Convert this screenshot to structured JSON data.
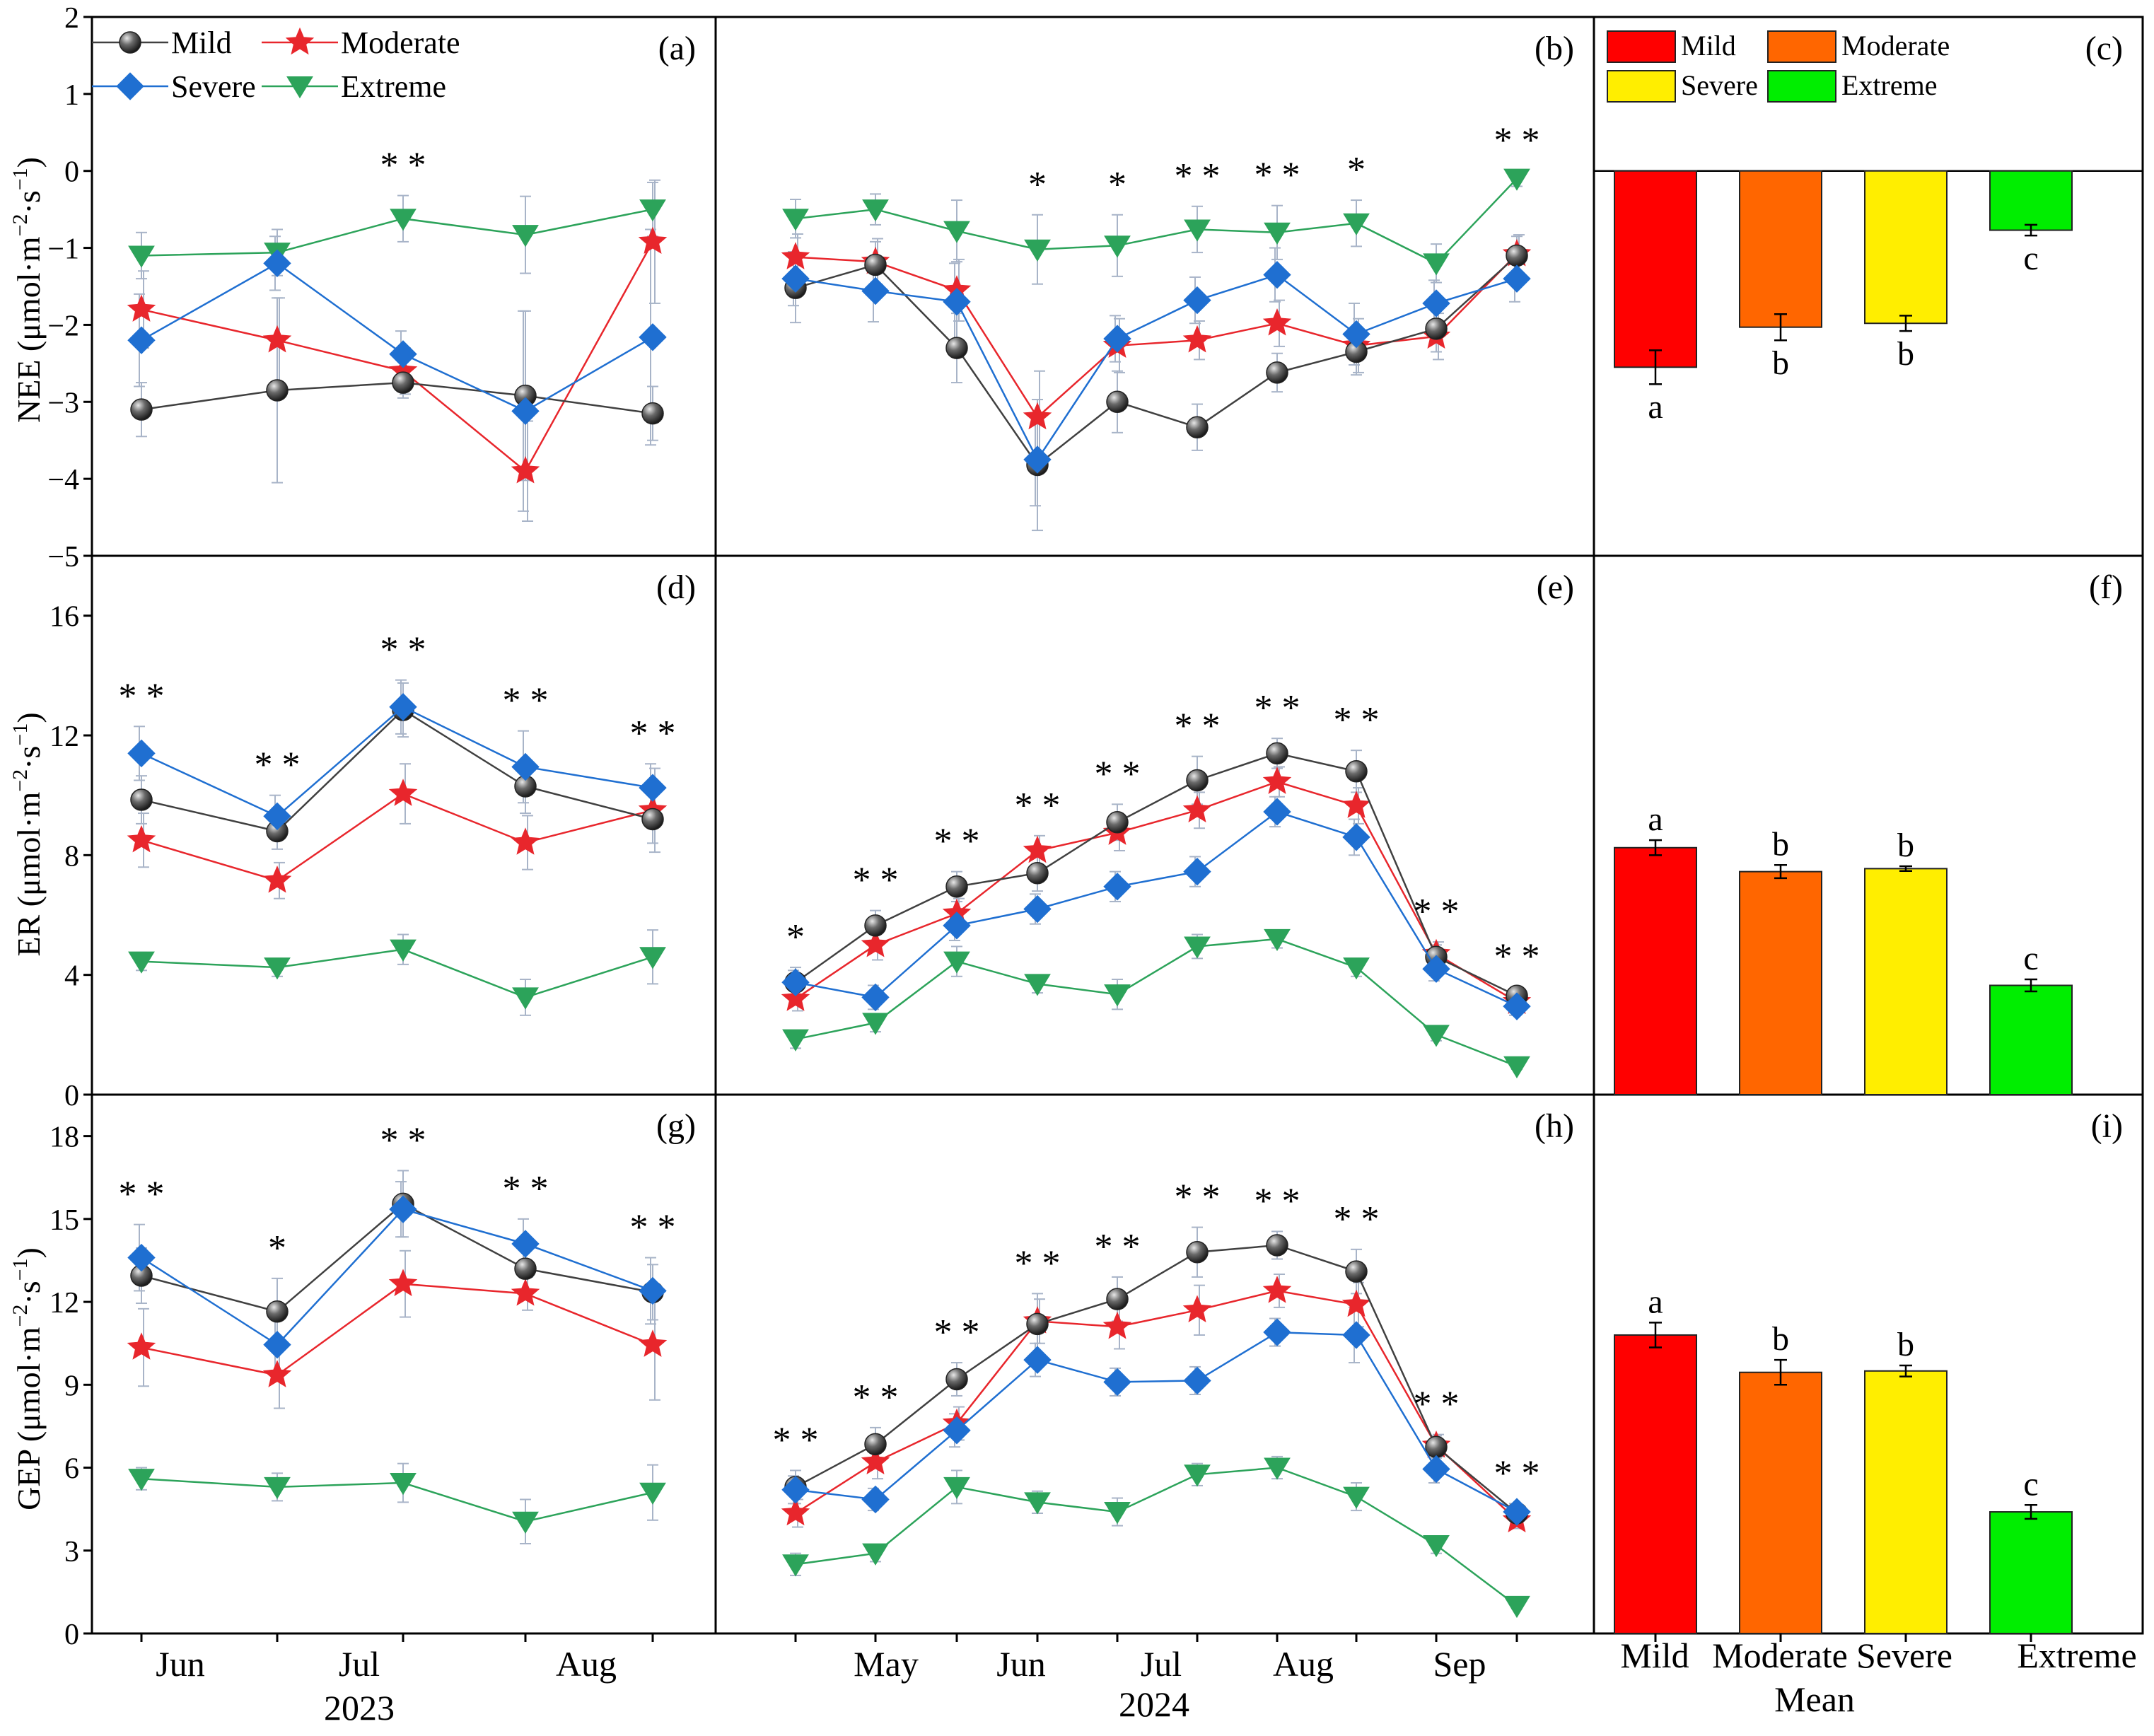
{
  "figure": {
    "markers": {
      "Mild": "sphere",
      "Moderate": "star",
      "Severe": "diamond",
      "Extreme": "down-triangle"
    },
    "line_colors": {
      "Mild": "#404040",
      "Moderate": "#e8262c",
      "Severe": "#1f6fd1",
      "Extreme": "#2ca35a"
    },
    "bar_colors": {
      "Mild": "#ff0000",
      "Moderate": "#ff6600",
      "Severe": "#ffee00",
      "Extreme": "#00ee00"
    },
    "errorbar_color": "#a8b4c8",
    "row_labels": {
      "NEE": {
        "main": "NEE (μmol·m",
        "sup1": "−2",
        "mid": "·s",
        "sup2": "−1",
        "end": ")"
      },
      "ER": {
        "main": "ER (μmol·m",
        "sup1": "−2",
        "mid": "·s",
        "sup2": "−1",
        "end": ")"
      },
      "GEP": {
        "main": "GEP (μmol·m",
        "sup1": "−2",
        "mid": "·s",
        "sup2": "−1",
        "end": ")"
      }
    },
    "x_axis_2023": {
      "ticks": [
        "Jun",
        "Jul",
        "Aug"
      ],
      "year": "2023"
    },
    "x_axis_2024": {
      "ticks": [
        "May",
        "Jun",
        "Jul",
        "Aug",
        "Sep"
      ],
      "year": "2024"
    },
    "x_axis_mean": {
      "ticks": [
        "Mild",
        "Moderate",
        "Severe",
        "Extreme"
      ],
      "title": "Mean"
    }
  },
  "chart_data": [
    {
      "panel": "(a)",
      "type": "line",
      "ylabel": "NEE",
      "ylim": [
        -5,
        2
      ],
      "yticks": [
        "2",
        "1",
        "0",
        "−1",
        "−2",
        "−3",
        "−4",
        "−5"
      ],
      "legend": [
        "Mild",
        "Moderate",
        "Severe",
        "Extreme"
      ],
      "series": [
        {
          "name": "Mild",
          "values": [
            -3.1,
            -2.85,
            -2.75,
            -2.92,
            -3.15
          ],
          "errors": [
            0.35,
            1.2,
            0.2,
            1.1,
            0.35
          ]
        },
        {
          "name": "Moderate",
          "values": [
            -1.8,
            -2.2,
            -2.6,
            -3.9,
            -0.92
          ],
          "errors": [
            0.5,
            0.55,
            0.3,
            0.65,
            0.8
          ]
        },
        {
          "name": "Severe",
          "values": [
            -2.2,
            -1.2,
            -2.38,
            -3.12,
            -2.16
          ],
          "errors": [
            0.6,
            0.35,
            0.3,
            1.3,
            1.4
          ]
        },
        {
          "name": "Extreme",
          "values": [
            -1.1,
            -1.06,
            -0.62,
            -0.83,
            -0.5
          ],
          "errors": [
            0.3,
            0.3,
            0.3,
            0.5,
            0.35
          ]
        }
      ],
      "significance": [
        "",
        "",
        "**",
        "",
        ""
      ]
    },
    {
      "panel": "(b)",
      "type": "line",
      "ylabel": "NEE",
      "ylim": [
        -5,
        2
      ],
      "series": [
        {
          "name": "Mild",
          "values": [
            -1.52,
            -1.22,
            -2.3,
            -3.82,
            -3.0,
            -3.33,
            -2.62,
            -2.35,
            -2.05,
            -1.1
          ],
          "errors": [
            0.45,
            0.3,
            0.45,
            0.85,
            0.4,
            0.3,
            0.25,
            0.3,
            0.3,
            0.25
          ]
        },
        {
          "name": "Moderate",
          "values": [
            -1.12,
            -1.18,
            -1.55,
            -3.2,
            -2.27,
            -2.2,
            -1.98,
            -2.27,
            -2.15,
            -1.08
          ],
          "errors": [
            0.3,
            0.3,
            0.4,
            0.6,
            0.35,
            0.25,
            0.3,
            0.35,
            0.3,
            0.25
          ]
        },
        {
          "name": "Severe",
          "values": [
            -1.4,
            -1.56,
            -1.7,
            -3.75,
            -2.18,
            -1.68,
            -1.35,
            -2.12,
            -1.72,
            -1.4
          ],
          "errors": [
            0.35,
            0.4,
            0.5,
            0.6,
            0.3,
            0.3,
            0.35,
            0.4,
            0.3,
            0.3
          ]
        },
        {
          "name": "Extreme",
          "values": [
            -0.62,
            -0.5,
            -0.78,
            -1.02,
            -0.97,
            -0.76,
            -0.8,
            -0.68,
            -1.2,
            -0.1
          ],
          "errors": [
            0.25,
            0.2,
            0.4,
            0.45,
            0.4,
            0.3,
            0.35,
            0.3,
            0.25,
            0.1
          ]
        }
      ],
      "significance": [
        "",
        "",
        "",
        "*",
        "*",
        "**",
        "**",
        "*",
        "",
        "**"
      ]
    },
    {
      "panel": "(c)",
      "type": "bar",
      "ylabel": "NEE",
      "ylim": [
        -5,
        2
      ],
      "categories": [
        "Mild",
        "Moderate",
        "Severe",
        "Extreme"
      ],
      "values": [
        -2.55,
        -2.03,
        -1.98,
        -0.77
      ],
      "errors": [
        0.22,
        0.17,
        0.1,
        0.07
      ],
      "letters": [
        "a",
        "b",
        "b",
        "c"
      ]
    },
    {
      "panel": "(d)",
      "type": "line",
      "ylabel": "ER",
      "ylim": [
        0,
        18
      ],
      "yticks": [
        "16",
        "12",
        "8",
        "4",
        "0"
      ],
      "series": [
        {
          "name": "Mild",
          "values": [
            9.85,
            8.8,
            12.85,
            10.3,
            9.2
          ],
          "errors": [
            0.8,
            0.6,
            0.9,
            0.9,
            0.8
          ]
        },
        {
          "name": "Moderate",
          "values": [
            8.5,
            7.15,
            10.05,
            8.42,
            9.5
          ],
          "errors": [
            0.9,
            0.6,
            1.0,
            0.9,
            1.4
          ]
        },
        {
          "name": "Severe",
          "values": [
            11.4,
            9.3,
            12.95,
            10.95,
            10.25
          ],
          "errors": [
            0.9,
            0.7,
            0.9,
            1.2,
            0.8
          ]
        },
        {
          "name": "Extreme",
          "values": [
            4.45,
            4.25,
            4.85,
            3.25,
            4.6
          ],
          "errors": [
            0.3,
            0.3,
            0.5,
            0.6,
            0.9
          ]
        }
      ],
      "significance": [
        "**",
        "**",
        "**",
        "**",
        "**"
      ]
    },
    {
      "panel": "(e)",
      "type": "line",
      "ylabel": "ER",
      "ylim": [
        0,
        18
      ],
      "series": [
        {
          "name": "Mild",
          "values": [
            3.75,
            5.65,
            6.95,
            7.4,
            9.1,
            10.5,
            11.4,
            10.8,
            4.6,
            3.3
          ],
          "errors": [
            0.5,
            0.5,
            0.5,
            0.6,
            0.6,
            0.8,
            0.5,
            0.7,
            0.4,
            0.3
          ]
        },
        {
          "name": "Moderate",
          "values": [
            3.2,
            5.0,
            6.05,
            8.15,
            8.75,
            9.5,
            10.45,
            9.65,
            4.7,
            3.1
          ],
          "errors": [
            0.4,
            0.5,
            0.5,
            0.5,
            0.6,
            0.6,
            0.5,
            0.6,
            0.4,
            0.3
          ]
        },
        {
          "name": "Severe",
          "values": [
            3.75,
            3.25,
            5.65,
            6.2,
            6.95,
            7.45,
            9.45,
            8.6,
            4.2,
            2.95
          ],
          "errors": [
            0.4,
            0.4,
            0.5,
            0.5,
            0.5,
            0.5,
            0.5,
            0.6,
            0.4,
            0.3
          ]
        },
        {
          "name": "Extreme",
          "values": [
            1.85,
            2.4,
            4.45,
            3.7,
            3.35,
            4.95,
            5.2,
            4.25,
            2.0,
            0.95
          ],
          "errors": [
            0.3,
            0.3,
            0.5,
            0.3,
            0.5,
            0.4,
            0.3,
            0.3,
            0.2,
            0.1
          ]
        }
      ],
      "significance": [
        "*",
        "**",
        "**",
        "**",
        "**",
        "**",
        "**",
        "**",
        "**",
        "**"
      ]
    },
    {
      "panel": "(f)",
      "type": "bar",
      "ylabel": "ER",
      "ylim": [
        0,
        18
      ],
      "categories": [
        "Mild",
        "Moderate",
        "Severe",
        "Extreme"
      ],
      "values": [
        8.25,
        7.45,
        7.55,
        3.65
      ],
      "errors": [
        0.25,
        0.22,
        0.08,
        0.2
      ],
      "letters": [
        "a",
        "b",
        "b",
        "c"
      ]
    },
    {
      "panel": "(g)",
      "type": "line",
      "ylabel": "GEP",
      "ylim": [
        0,
        19.5
      ],
      "yticks": [
        "18",
        "15",
        "12",
        "9",
        "6",
        "3",
        "0"
      ],
      "xticks": [
        "Jun",
        "Jul",
        "Aug"
      ],
      "year": "2023",
      "series": [
        {
          "name": "Mild",
          "values": [
            12.95,
            11.65,
            15.55,
            13.2,
            12.35
          ],
          "errors": [
            1.0,
            1.2,
            1.2,
            0.9,
            1.0
          ]
        },
        {
          "name": "Moderate",
          "values": [
            10.35,
            9.35,
            12.65,
            12.3,
            10.45
          ],
          "errors": [
            1.4,
            1.2,
            1.2,
            0.6,
            2.0
          ]
        },
        {
          "name": "Severe",
          "values": [
            13.6,
            10.45,
            15.35,
            14.1,
            12.4
          ],
          "errors": [
            1.2,
            1.0,
            1.0,
            0.9,
            1.2
          ]
        },
        {
          "name": "Extreme",
          "values": [
            5.6,
            5.3,
            5.45,
            4.05,
            5.1
          ],
          "errors": [
            0.4,
            0.5,
            0.7,
            0.8,
            1.0
          ]
        }
      ],
      "significance": [
        "**",
        "*",
        "**",
        "**",
        "**"
      ]
    },
    {
      "panel": "(h)",
      "type": "line",
      "ylabel": "GEP",
      "ylim": [
        0,
        19.5
      ],
      "xticks": [
        "May",
        "Jun",
        "Jul",
        "Aug",
        "Sep"
      ],
      "year": "2024",
      "series": [
        {
          "name": "Mild",
          "values": [
            5.3,
            6.85,
            9.2,
            11.2,
            12.1,
            13.8,
            14.05,
            13.1,
            6.75,
            4.35
          ],
          "errors": [
            0.6,
            0.6,
            0.6,
            1.1,
            0.8,
            0.9,
            0.5,
            0.8,
            0.4,
            0.3
          ]
        },
        {
          "name": "Moderate",
          "values": [
            4.35,
            6.2,
            7.6,
            11.3,
            11.1,
            11.7,
            12.4,
            11.9,
            6.8,
            4.1
          ],
          "errors": [
            0.5,
            0.6,
            0.6,
            0.8,
            0.8,
            0.9,
            0.6,
            0.8,
            0.4,
            0.3
          ]
        },
        {
          "name": "Severe",
          "values": [
            5.2,
            4.85,
            7.35,
            9.9,
            9.1,
            9.15,
            10.9,
            10.8,
            5.95,
            4.4
          ],
          "errors": [
            0.5,
            0.4,
            0.6,
            0.6,
            0.5,
            0.5,
            0.5,
            1.0,
            0.5,
            0.3
          ]
        },
        {
          "name": "Extreme",
          "values": [
            2.5,
            2.9,
            5.3,
            4.75,
            4.4,
            5.75,
            6.0,
            4.95,
            3.2,
            1.0
          ],
          "errors": [
            0.4,
            0.3,
            0.6,
            0.4,
            0.5,
            0.4,
            0.4,
            0.5,
            0.3,
            0.1
          ]
        }
      ],
      "significance": [
        "**",
        "**",
        "**",
        "**",
        "**",
        "**",
        "**",
        "**",
        "**",
        "**"
      ]
    },
    {
      "panel": "(i)",
      "type": "bar",
      "ylabel": "GEP",
      "ylim": [
        0,
        19.5
      ],
      "xticks": [
        "Mild",
        "Moderate",
        "Severe",
        "Extreme"
      ],
      "xtitle": "Mean",
      "categories": [
        "Mild",
        "Moderate",
        "Severe",
        "Extreme"
      ],
      "values": [
        10.8,
        9.45,
        9.5,
        4.4
      ],
      "errors": [
        0.45,
        0.45,
        0.2,
        0.25
      ],
      "letters": [
        "a",
        "b",
        "b",
        "c"
      ]
    }
  ]
}
